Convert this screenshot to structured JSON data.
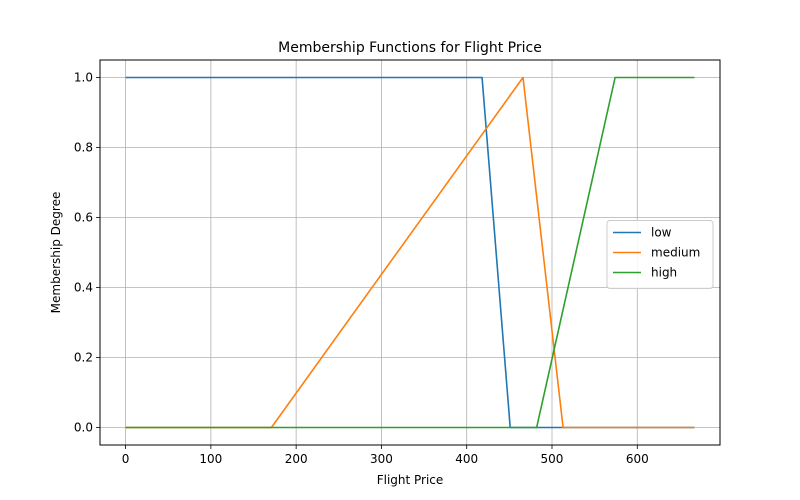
{
  "chart_data": {
    "type": "line",
    "title": "Membership Functions for Flight Price",
    "xlabel": "Flight Price",
    "ylabel": "Membership Degree",
    "xlim": [
      -30,
      697
    ],
    "ylim": [
      -0.05,
      1.05
    ],
    "xticks": [
      0,
      100,
      200,
      300,
      400,
      500,
      600
    ],
    "yticks": [
      0.0,
      0.2,
      0.4,
      0.6,
      0.8,
      1.0
    ],
    "xtick_labels": [
      "0",
      "100",
      "200",
      "300",
      "400",
      "500",
      "600"
    ],
    "ytick_labels": [
      "0.0",
      "0.2",
      "0.4",
      "0.6",
      "0.8",
      "1.0"
    ],
    "grid": true,
    "legend_position": "center-right",
    "series": [
      {
        "name": "low",
        "color": "#1f77b4",
        "x": [
          0,
          418,
          451,
          667
        ],
        "y": [
          1.0,
          1.0,
          0.0,
          0.0
        ]
      },
      {
        "name": "medium",
        "color": "#ff7f0e",
        "x": [
          0,
          171,
          466,
          513,
          667
        ],
        "y": [
          0.0,
          0.0,
          1.0,
          0.0,
          0.0
        ]
      },
      {
        "name": "high",
        "color": "#2ca02c",
        "x": [
          0,
          482,
          574,
          667
        ],
        "y": [
          0.0,
          0.0,
          1.0,
          1.0
        ]
      }
    ]
  }
}
